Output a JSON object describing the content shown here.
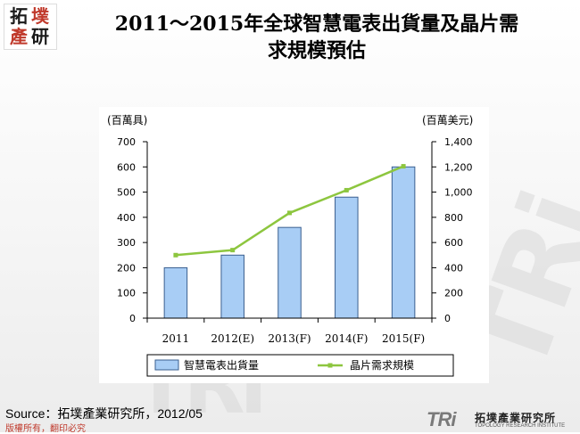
{
  "header": {
    "logo_chars": [
      "拓",
      "墣",
      "產",
      "研"
    ],
    "title_line1": "2011～2015年全球智慧電表出貨量及晶片需",
    "title_line2": "求規模預估"
  },
  "chart_data": {
    "type": "bar",
    "categories": [
      "2011",
      "2012(E)",
      "2013(F)",
      "2014(F)",
      "2015(F)"
    ],
    "series": [
      {
        "name": "智慧電表出貨量",
        "type": "bar",
        "axis": "left",
        "values": [
          200,
          250,
          360,
          480,
          600
        ],
        "color": "#a8cdf5"
      },
      {
        "name": "晶片需求規模",
        "type": "line",
        "axis": "right",
        "values": [
          500,
          540,
          835,
          1015,
          1205
        ],
        "color": "#8dc63f"
      }
    ],
    "left_axis": {
      "label": "(百萬具)",
      "min": 0,
      "max": 700,
      "step": 100,
      "tick_labels": [
        "0",
        "100",
        "200",
        "300",
        "400",
        "500",
        "600",
        "700"
      ]
    },
    "right_axis": {
      "label": "(百萬美元)",
      "min": 0,
      "max": 1400,
      "step": 200,
      "tick_labels": [
        "0",
        "200",
        "400",
        "600",
        "800",
        "1,000",
        "1,200",
        "1,400"
      ]
    },
    "grid": false,
    "legend_position": "bottom"
  },
  "footer": {
    "source": "Source：拓墣產業研究所，2012/05",
    "copyright": "版權所有，翻印必究",
    "logo_mark": "TRi",
    "logo_cn": "拓墣產業研究所",
    "logo_en": "TOPOLOGY RESEARCH INSTITUTE"
  },
  "watermark": {
    "text": "TRi"
  },
  "colors": {
    "bar": "#a8cdf5",
    "bar_stroke": "#3a5f8f",
    "line": "#8dc63f",
    "axis": "#000000"
  }
}
